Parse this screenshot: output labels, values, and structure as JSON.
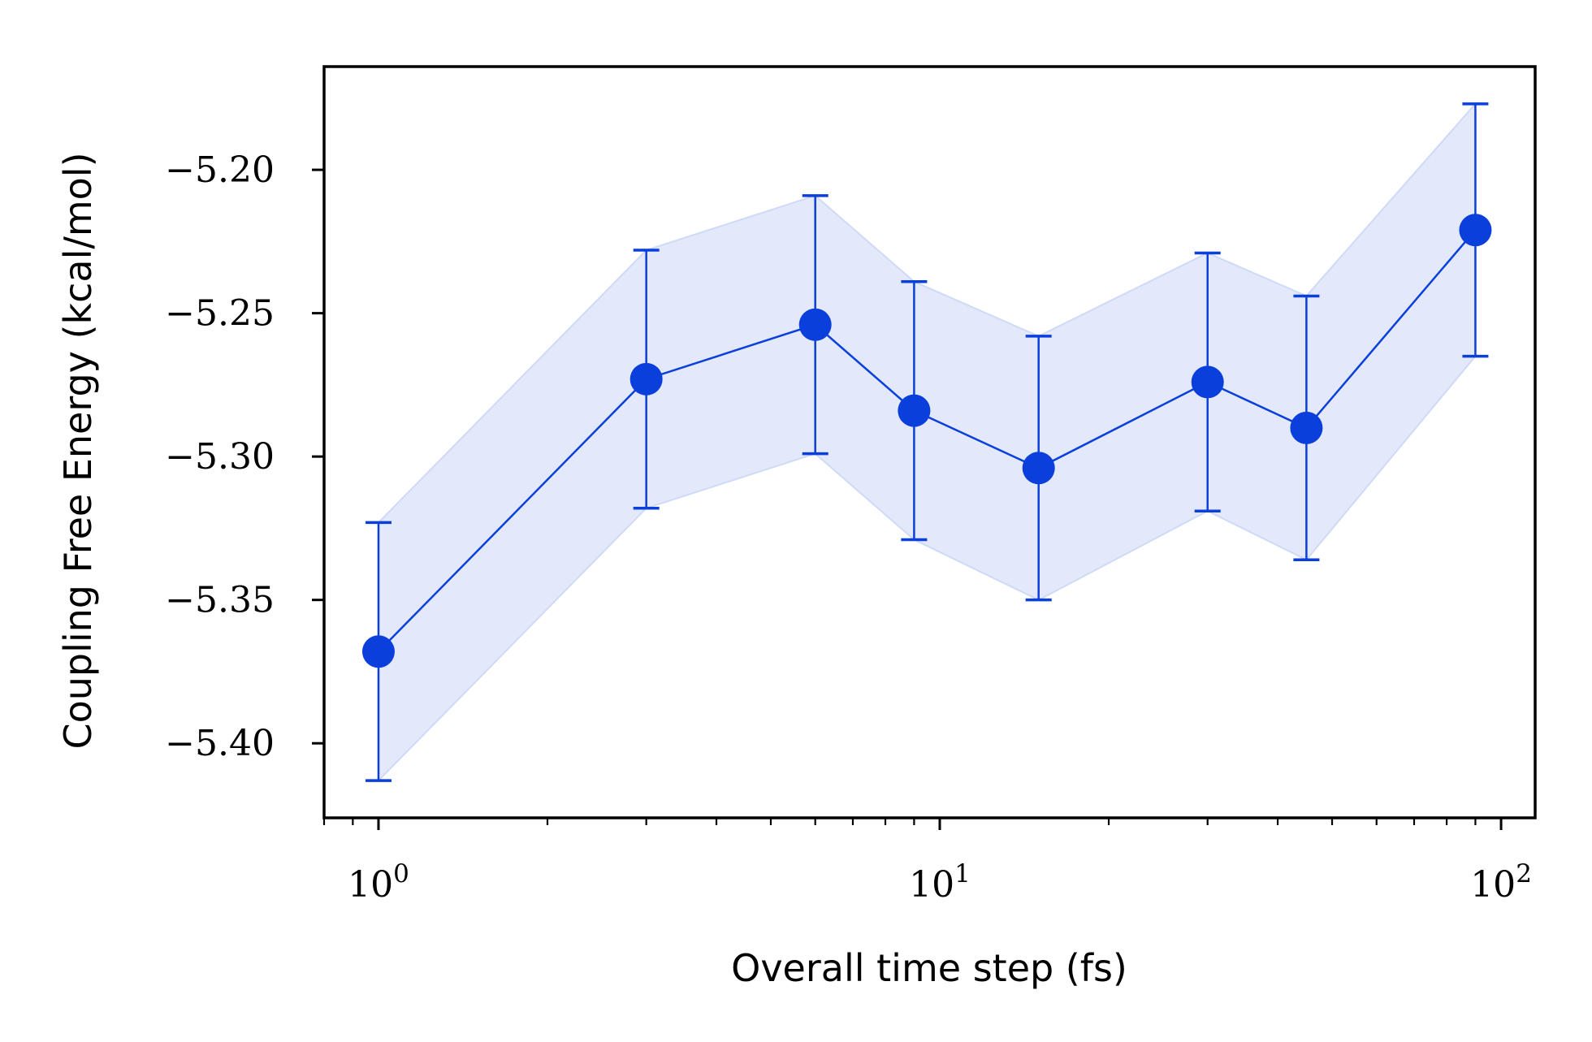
{
  "chart_data": {
    "type": "line",
    "title": "",
    "xlabel": "Overall time step (fs)",
    "ylabel": "Coupling Free Energy (kcal/mol)",
    "xscale": "log",
    "xlim": [
      0.8,
      115
    ],
    "ylim": [
      -5.426,
      -5.164
    ],
    "x_ticks": [
      {
        "value": 1,
        "base": "10",
        "exp": "0"
      },
      {
        "value": 10,
        "base": "10",
        "exp": "1"
      },
      {
        "value": 100,
        "base": "10",
        "exp": "2"
      }
    ],
    "y_ticks": [
      {
        "value": -5.2,
        "label": "−5.20"
      },
      {
        "value": -5.25,
        "label": "−5.25"
      },
      {
        "value": -5.3,
        "label": "−5.30"
      },
      {
        "value": -5.35,
        "label": "−5.35"
      },
      {
        "value": -5.4,
        "label": "−5.40"
      }
    ],
    "grid": false,
    "legend": "none",
    "color": "#0a3fdc",
    "band_color": "#e3e9fa",
    "series": [
      {
        "x": [
          1,
          3,
          6,
          9,
          15,
          30,
          45,
          90
        ],
        "y": [
          -5.368,
          -5.273,
          -5.254,
          -5.284,
          -5.304,
          -5.274,
          -5.29,
          -5.221
        ],
        "err": [
          0.045,
          0.045,
          0.045,
          0.045,
          0.046,
          0.045,
          0.046,
          0.044
        ]
      }
    ]
  }
}
